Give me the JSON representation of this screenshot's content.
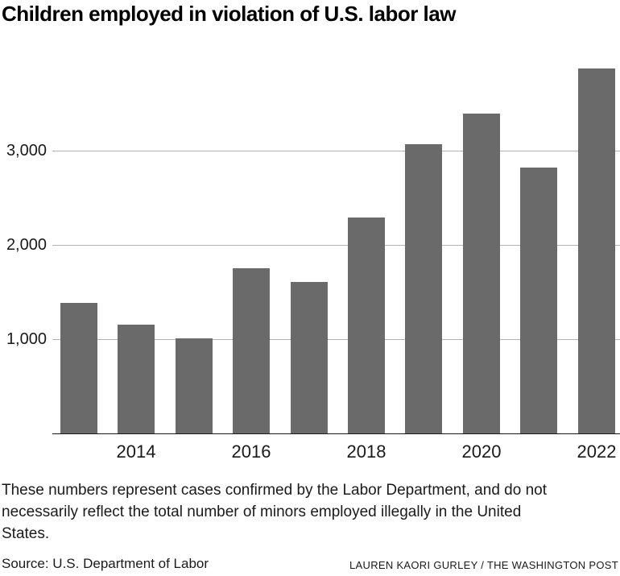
{
  "title": "Children employed in violation of U.S. labor law",
  "chart_data": {
    "type": "bar",
    "title": "Children employed in violation of U.S. labor law",
    "categories": [
      "2013",
      "2014",
      "2015",
      "2016",
      "2017",
      "2018",
      "2019",
      "2020",
      "2021",
      "2022"
    ],
    "values": [
      1389,
      1156,
      1012,
      1756,
      1609,
      2289,
      3073,
      3395,
      2819,
      3876
    ],
    "xlabel": "",
    "ylabel": "",
    "ylim": [
      0,
      4000
    ],
    "yticks": [
      1000,
      2000,
      3000
    ],
    "ytick_labels": [
      "1,000",
      "2,000",
      "3,000"
    ],
    "xtick_labels": [
      "2014",
      "2016",
      "2018",
      "2020",
      "2022"
    ],
    "grid": "horizontal",
    "legend": "none",
    "bar_color": "#6a6a6a",
    "gridline_color": "#b3b3b3",
    "axis_color": "#1a1a1a"
  },
  "note": {
    "lines": [
      "These numbers represent cases confirmed by the Labor Department, and do not",
      "necessarily reflect the total number of minors employed illegally in the United",
      "States."
    ]
  },
  "footer": {
    "source": "Source: U.S. Department of Labor",
    "byline": "LAUREN KAORI GURLEY / THE WASHINGTON POST"
  }
}
